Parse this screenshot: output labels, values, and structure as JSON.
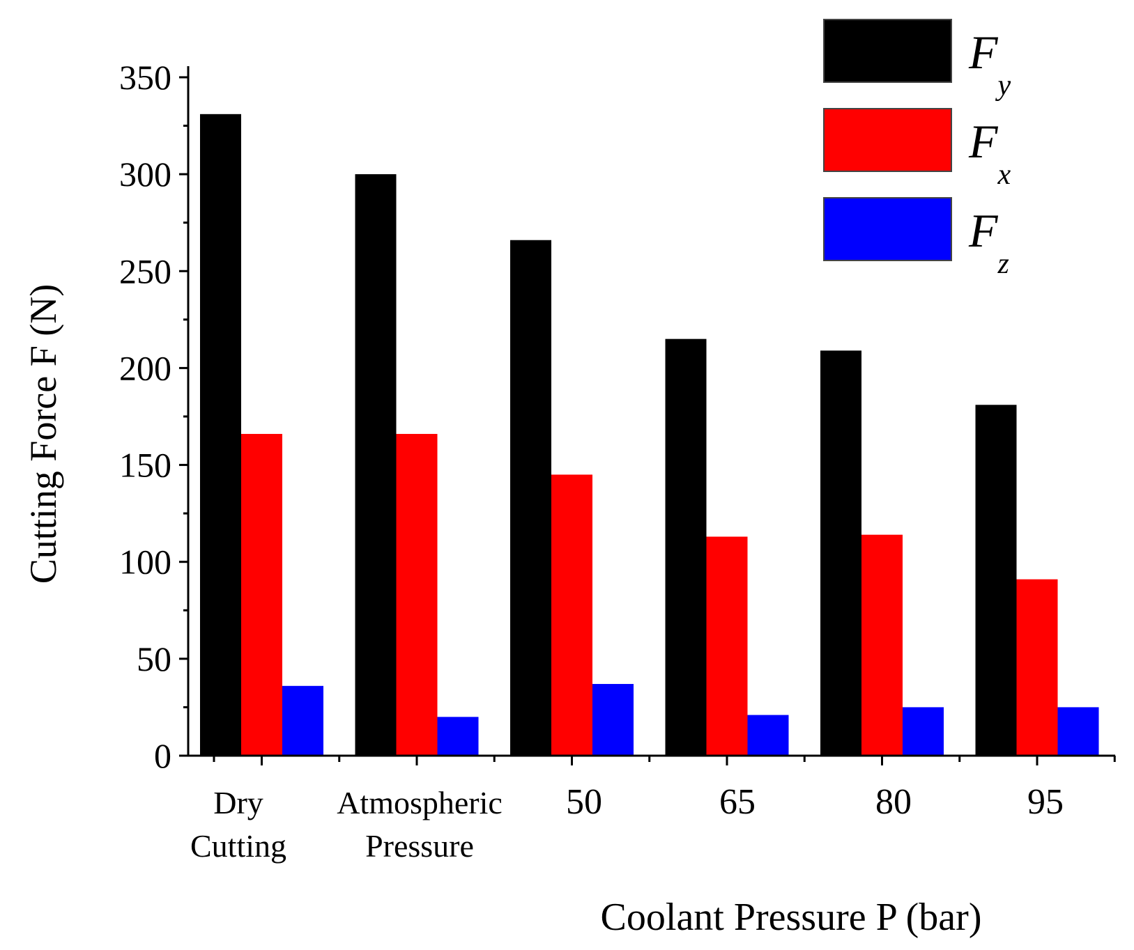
{
  "chart_data": {
    "type": "bar",
    "title": "",
    "xlabel": "Coolant Pressure P (bar)",
    "ylabel": "Cutting Force F (N)",
    "ylim": [
      0,
      350
    ],
    "yticks": [
      0,
      50,
      100,
      150,
      200,
      250,
      300,
      350
    ],
    "grid": false,
    "legend_position": "top-right",
    "categories": [
      [
        "Dry",
        "Cutting"
      ],
      [
        "Atmospheric",
        "Pressure"
      ],
      [
        "50"
      ],
      [
        "65"
      ],
      [
        "80"
      ],
      [
        "95"
      ]
    ],
    "series": [
      {
        "name": "F",
        "subscript": "y",
        "color": "#000000",
        "values": [
          331,
          300,
          266,
          215,
          209,
          181
        ]
      },
      {
        "name": "F",
        "subscript": "x",
        "color": "#ff0000",
        "values": [
          166,
          166,
          145,
          113,
          114,
          91
        ]
      },
      {
        "name": "F",
        "subscript": "z",
        "color": "#0000ff",
        "values": [
          36,
          20,
          37,
          21,
          25,
          25
        ]
      }
    ]
  }
}
